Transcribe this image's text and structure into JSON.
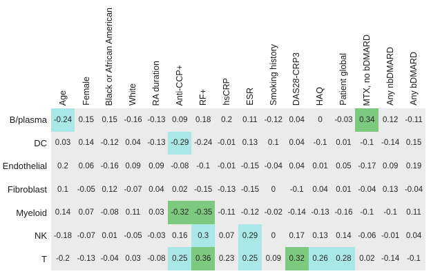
{
  "figure": {
    "name": "cell-type-clinical-correlation-heatmap"
  },
  "chart_data": {
    "type": "heatmap",
    "title": "",
    "xlabel": "",
    "ylabel": "",
    "legend_position": "none",
    "grid": false,
    "columns": [
      "Age",
      "Female",
      "Black or African American",
      "White",
      "RA duration",
      "Anti-CCP+",
      "RF+",
      "hsCRP",
      "ESR",
      "Smoking history",
      "DAS28-CRP3",
      "HAQ",
      "Patient global",
      "MTX, no bDMARD",
      "Any nbDMARD",
      "Any bDMARD"
    ],
    "rows": [
      "B/plasma",
      "DC",
      "Endothelial",
      "Fibroblast",
      "Myeloid",
      "NK",
      "T"
    ],
    "values": [
      [
        "-0.24",
        "0.15",
        "0.15",
        "-0.16",
        "-0.13",
        "0.09",
        "0.18",
        "0.2",
        "0.11",
        "-0.12",
        "0.04",
        "0",
        "-0.03",
        "0.34",
        "0.12",
        "-0.11"
      ],
      [
        "0.03",
        "0.14",
        "-0.12",
        "0.04",
        "-0.13",
        "-0.29",
        "-0.24",
        "-0.01",
        "0.13",
        "0.1",
        "0.04",
        "-0.1",
        "0.01",
        "-0.1",
        "-0.14",
        "0.15"
      ],
      [
        "0.2",
        "0.06",
        "-0.16",
        "0.09",
        "0.09",
        "-0.08",
        "-0.1",
        "-0.01",
        "-0.15",
        "-0.04",
        "0.04",
        "0.01",
        "0.05",
        "-0.17",
        "0.09",
        "0.19"
      ],
      [
        "0.1",
        "-0.05",
        "0.12",
        "-0.07",
        "0.04",
        "0.02",
        "-0.15",
        "-0.13",
        "-0.15",
        "0",
        "-0.1",
        "0.04",
        "0.01",
        "-0.04",
        "0.13",
        "-0.04"
      ],
      [
        "0.14",
        "0.07",
        "-0.08",
        "0.11",
        "0.03",
        "-0.32",
        "-0.35",
        "-0.11",
        "-0.12",
        "-0.02",
        "-0.14",
        "-0.13",
        "-0.16",
        "-0.1",
        "-0.1",
        "0.11"
      ],
      [
        "-0.18",
        "-0.07",
        "0.01",
        "-0.05",
        "-0.03",
        "0.16",
        "0.3",
        "0.07",
        "0.29",
        "0",
        "0.17",
        "0.13",
        "0.14",
        "-0.06",
        "-0.01",
        "0.04"
      ],
      [
        "-0.2",
        "-0.13",
        "-0.04",
        "0.03",
        "-0.08",
        "0.25",
        "0.36",
        "0.23",
        "0.25",
        "0.09",
        "0.32",
        "0.26",
        "0.28",
        "0.02",
        "-0.14",
        "-0.1"
      ]
    ],
    "highlights": [
      [
        "cyan",
        "",
        "",
        "",
        "",
        "",
        "",
        "",
        "",
        "",
        "",
        "",
        "",
        "green",
        "",
        ""
      ],
      [
        "",
        "",
        "",
        "",
        "",
        "cyan",
        "",
        "",
        "",
        "",
        "",
        "",
        "",
        "",
        "",
        ""
      ],
      [
        "",
        "",
        "",
        "",
        "",
        "",
        "",
        "",
        "",
        "",
        "",
        "",
        "",
        "",
        "",
        ""
      ],
      [
        "",
        "",
        "",
        "",
        "",
        "",
        "",
        "",
        "",
        "",
        "",
        "",
        "",
        "",
        "",
        ""
      ],
      [
        "",
        "",
        "",
        "",
        "",
        "green",
        "green",
        "",
        "",
        "",
        "",
        "",
        "",
        "",
        "",
        ""
      ],
      [
        "",
        "",
        "",
        "",
        "",
        "",
        "cyan",
        "",
        "cyan",
        "",
        "",
        "",
        "",
        "",
        "",
        ""
      ],
      [
        "",
        "",
        "",
        "",
        "",
        "cyan",
        "green",
        "",
        "cyan",
        "",
        "green",
        "cyan",
        "cyan",
        "",
        "",
        ""
      ]
    ],
    "colors": {
      "cell_background": "#ebebeb",
      "highlight_cyan": "#a9e8e6",
      "highlight_green": "#7cc97f",
      "text": "#262626",
      "label_text": "#1a1a1a",
      "page_background": "#ffffff"
    }
  }
}
